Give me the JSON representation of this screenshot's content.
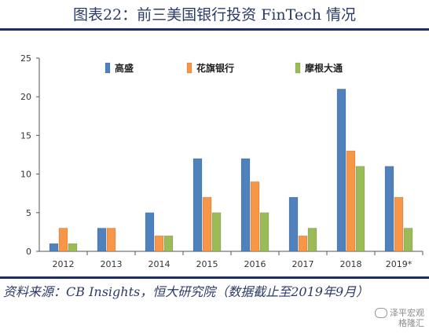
{
  "figure_title": "图表22：前三美国银行投资 FinTech 情况",
  "source_note": "资料来源：CB Insights，恒大研究院（数据截止至2019年9月）",
  "watermark": {
    "line1": "泽平宏观",
    "line2": "格隆汇"
  },
  "colors": {
    "title": "#2b3a67",
    "rule": "#1f2f5f",
    "series": [
      "#4f81bd",
      "#f79646",
      "#9bbb59"
    ]
  },
  "chart_data": {
    "type": "bar",
    "categories": [
      "2012",
      "2013",
      "2014",
      "2015",
      "2016",
      "2017",
      "2018",
      "2019*"
    ],
    "series": [
      {
        "name": "高盛",
        "values": [
          1,
          3,
          5,
          12,
          12,
          7,
          21,
          11
        ]
      },
      {
        "name": "花旗银行",
        "values": [
          3,
          3,
          2,
          7,
          9,
          2,
          13,
          7
        ]
      },
      {
        "name": "摩根大通",
        "values": [
          1,
          0,
          2,
          5,
          5,
          3,
          11,
          3
        ]
      }
    ],
    "yticks": [
      0,
      5,
      10,
      15,
      20,
      25
    ],
    "ylim": [
      0,
      25
    ],
    "legend_position": "top-center",
    "grid": false
  }
}
